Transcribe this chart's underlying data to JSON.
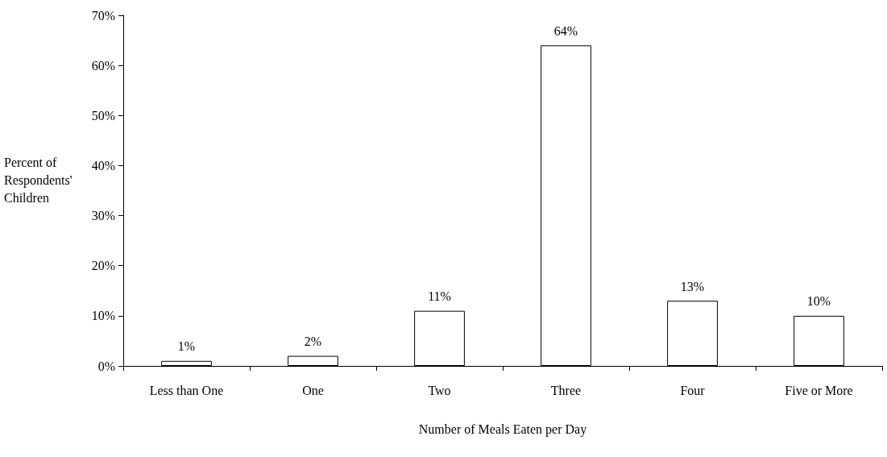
{
  "chart_data": {
    "type": "bar",
    "xlabel": "Number of Meals Eaten per Day",
    "ylabel": "Percent of Respondents' Children",
    "categories": [
      "Less than One",
      "One",
      "Two",
      "Three",
      "Four",
      "Five or More"
    ],
    "values": [
      1,
      2,
      11,
      64,
      13,
      10
    ],
    "value_labels": [
      "1%",
      "2%",
      "11%",
      "64%",
      "13%",
      "10%"
    ],
    "color": "#ffffff",
    "ylim": [
      0,
      70
    ],
    "yticks": [
      {
        "value": 0,
        "label": "0%"
      },
      {
        "value": 10,
        "label": "10%"
      },
      {
        "value": 20,
        "label": "20%"
      },
      {
        "value": 30,
        "label": "30%"
      },
      {
        "value": 40,
        "label": "40%"
      },
      {
        "value": 50,
        "label": "50%"
      },
      {
        "value": 60,
        "label": "60%"
      },
      {
        "value": 70,
        "label": "70%"
      }
    ],
    "grid": false
  }
}
